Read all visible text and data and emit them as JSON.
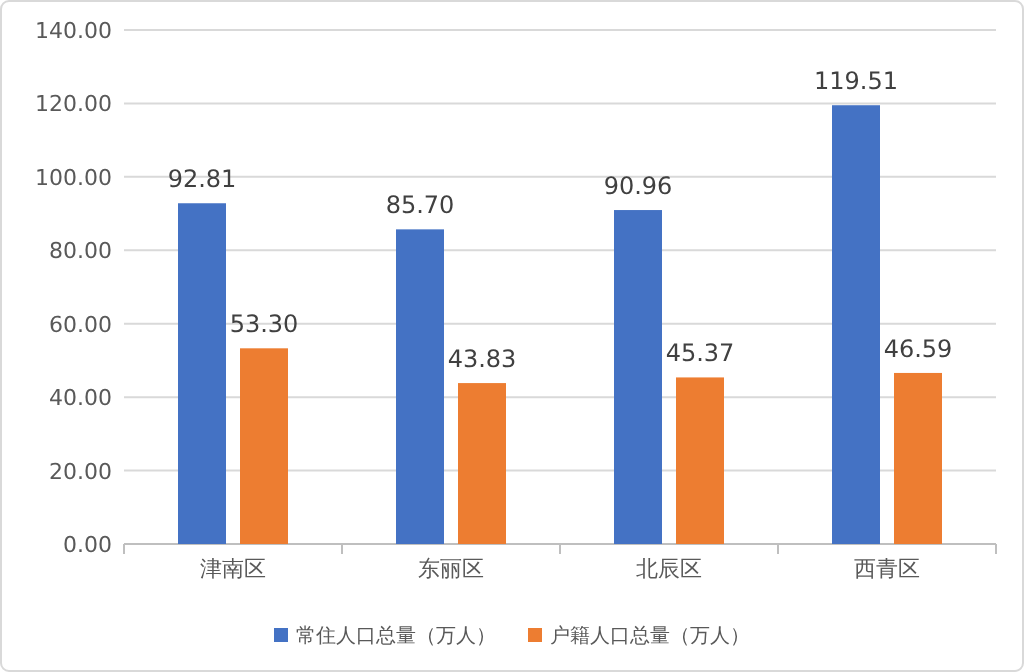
{
  "chart_data": {
    "type": "bar",
    "categories": [
      "津南区",
      "东丽区",
      "北辰区",
      "西青区"
    ],
    "series": [
      {
        "name": "常住人口总量（万人）",
        "color": "#4472c4",
        "values": [
          92.81,
          85.7,
          90.96,
          119.51
        ],
        "value_labels": [
          "92.81",
          "85.70",
          "90.96",
          "119.51"
        ]
      },
      {
        "name": "户籍人口总量（万人）",
        "color": "#ed7d31",
        "values": [
          53.3,
          43.83,
          45.37,
          46.59
        ],
        "value_labels": [
          "53.30",
          "43.83",
          "45.37",
          "46.59"
        ]
      }
    ],
    "ylim": [
      0,
      140
    ],
    "yticks": [
      {
        "value": 0,
        "label": "0.00"
      },
      {
        "value": 20,
        "label": "20.00"
      },
      {
        "value": 40,
        "label": "40.00"
      },
      {
        "value": 60,
        "label": "60.00"
      },
      {
        "value": 80,
        "label": "80.00"
      },
      {
        "value": 100,
        "label": "100.00"
      },
      {
        "value": 120,
        "label": "120.00"
      },
      {
        "value": 140,
        "label": "140.00"
      }
    ],
    "grid": "y",
    "legend": "bottom"
  }
}
